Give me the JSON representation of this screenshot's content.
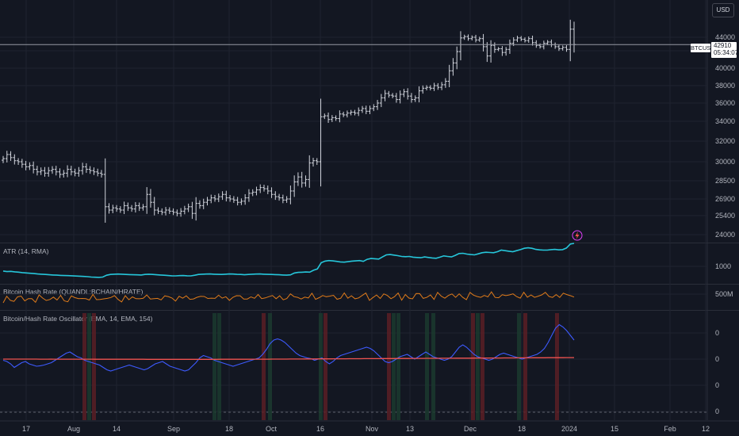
{
  "currency": "USD",
  "symbol_label": "BTCUSD",
  "last_price": "42910",
  "countdown": "05:34:07",
  "colors": {
    "background": "#131722",
    "grid": "#1f2330",
    "pane_border": "#2a2e39",
    "candles": "#d1d4dc",
    "atr": "#26c6da",
    "hashrate": "#e07b1a",
    "osc_fast": "#3d5afe",
    "osc_slow": "#f05350",
    "band_red": "#5a1f24",
    "band_green": "#1b3a2e"
  },
  "chart_data": [
    {
      "type": "candlestick",
      "title": "",
      "yticks": [
        "44000",
        "42000",
        "40000",
        "38000",
        "36000",
        "34000",
        "32000",
        "30000",
        "28500",
        "26900",
        "25400",
        "24000"
      ],
      "xticks": [
        "17",
        "Aug",
        "14",
        "Sep",
        "18",
        "Oct",
        "16",
        "Nov",
        "13",
        "Dec",
        "18",
        "2024",
        "15",
        "Feb",
        "12"
      ],
      "last_price": 42910,
      "close": [
        30300,
        30700,
        30400,
        30100,
        30000,
        29800,
        29600,
        29700,
        29400,
        29200,
        29300,
        29100,
        29300,
        29400,
        29200,
        29000,
        29100,
        29400,
        29200,
        29100,
        29300,
        29600,
        29400,
        29300,
        29200,
        29100,
        29000,
        26200,
        25900,
        26100,
        26000,
        25900,
        26300,
        26100,
        26000,
        26300,
        26100,
        26200,
        27300,
        26600,
        25900,
        25800,
        25700,
        25900,
        25800,
        25700,
        25600,
        25800,
        26000,
        26200,
        25600,
        26500,
        26300,
        26600,
        26800,
        27000,
        26900,
        27100,
        27300,
        27000,
        26900,
        26800,
        26600,
        26700,
        27000,
        27400,
        27500,
        27700,
        27900,
        27800,
        27600,
        27300,
        27100,
        27000,
        26800,
        26900,
        27600,
        28400,
        28800,
        28300,
        28600,
        29900,
        30100,
        30000,
        34500,
        34600,
        34200,
        34400,
        34300,
        34800,
        34700,
        34900,
        35000,
        34900,
        35200,
        35400,
        35100,
        35400,
        35600,
        36000,
        36600,
        37100,
        36900,
        36800,
        36400,
        37000,
        37300,
        36800,
        36400,
        36600,
        37400,
        37700,
        37800,
        37700,
        38000,
        37800,
        38100,
        38500,
        39700,
        40600,
        41900,
        43900,
        44100,
        43800,
        44000,
        43600,
        43800,
        42600,
        41400,
        42800,
        42200,
        42300,
        41800,
        42200,
        43100,
        43600,
        43900,
        43700,
        43500,
        43800,
        43200,
        42800,
        42600,
        43100,
        43300,
        42900,
        42600,
        42300,
        42500,
        42200,
        45200,
        42910
      ],
      "ylim": [
        23500,
        46500
      ]
    },
    {
      "type": "line",
      "title": "ATR (14, RMA)",
      "yticks": [
        "1000"
      ],
      "series": [
        {
          "name": "ATR",
          "values": [
            820,
            800,
            810,
            790,
            780,
            760,
            750,
            735,
            725,
            710,
            700,
            690,
            680,
            670,
            665,
            655,
            650,
            645,
            640,
            630,
            625,
            615,
            605,
            590,
            585,
            580,
            590,
            660,
            690,
            700,
            705,
            700,
            690,
            685,
            680,
            675,
            670,
            690,
            700,
            690,
            680,
            670,
            660,
            650,
            640,
            635,
            645,
            650,
            640,
            635,
            660,
            690,
            700,
            705,
            710,
            700,
            695,
            690,
            700,
            710,
            705,
            695,
            690,
            680,
            690,
            700,
            705,
            710,
            700,
            695,
            690,
            685,
            680,
            670,
            665,
            675,
            745,
            770,
            775,
            785,
            780,
            850,
            900,
            1140,
            1200,
            1220,
            1210,
            1190,
            1170,
            1160,
            1180,
            1200,
            1210,
            1220,
            1190,
            1270,
            1300,
            1290,
            1280,
            1360,
            1440,
            1450,
            1430,
            1410,
            1380,
            1370,
            1380,
            1350,
            1340,
            1330,
            1360,
            1340,
            1320,
            1310,
            1350,
            1400,
            1380,
            1360,
            1420,
            1490,
            1500,
            1470,
            1450,
            1440,
            1480,
            1520,
            1540,
            1530,
            1520,
            1560,
            1620,
            1600,
            1580,
            1560,
            1600,
            1640,
            1690,
            1710,
            1690,
            1650,
            1630,
            1620,
            1620,
            1640,
            1650,
            1630,
            1640,
            1700,
            1850,
            1880
          ]
        }
      ]
    },
    {
      "type": "line",
      "title": "Bitcoin Hash Rate (QUANDL:BCHAIN/HRATE)",
      "yticks": [
        "500M"
      ]
    },
    {
      "type": "line",
      "title": "Bitcoin/Hash Rate Oscillator (EMA, 14, EMA, 154)",
      "yticks": [
        "0",
        "0",
        "0",
        "0"
      ],
      "series": [
        {
          "name": "EMA 14",
          "values": [
            -0.05,
            -0.1,
            -0.2,
            -0.35,
            -0.25,
            -0.15,
            -0.1,
            -0.2,
            -0.25,
            -0.3,
            -0.28,
            -0.25,
            -0.2,
            -0.15,
            -0.05,
            0.05,
            0.15,
            0.25,
            0.3,
            0.2,
            0.1,
            0.05,
            -0.05,
            -0.1,
            -0.15,
            -0.2,
            -0.25,
            -0.35,
            -0.45,
            -0.5,
            -0.45,
            -0.4,
            -0.35,
            -0.3,
            -0.25,
            -0.3,
            -0.35,
            -0.4,
            -0.45,
            -0.4,
            -0.3,
            -0.2,
            -0.15,
            -0.1,
            -0.2,
            -0.3,
            -0.35,
            -0.4,
            -0.45,
            -0.5,
            -0.45,
            -0.3,
            -0.15,
            0.05,
            0.15,
            0.1,
            0.05,
            -0.05,
            -0.1,
            -0.15,
            -0.2,
            -0.25,
            -0.3,
            -0.25,
            -0.2,
            -0.15,
            -0.1,
            -0.05,
            0.0,
            0.05,
            0.2,
            0.4,
            0.65,
            0.8,
            0.85,
            0.8,
            0.7,
            0.55,
            0.4,
            0.25,
            0.15,
            0.1,
            0.05,
            0.02,
            -0.05,
            0.0,
            0.05,
            -0.1,
            -0.2,
            -0.1,
            0.05,
            0.15,
            0.2,
            0.25,
            0.3,
            0.35,
            0.4,
            0.45,
            0.5,
            0.45,
            0.35,
            0.2,
            0.05,
            -0.1,
            -0.15,
            -0.1,
            0.0,
            0.1,
            0.15,
            0.2,
            0.1,
            0.0,
            0.1,
            0.2,
            0.3,
            0.2,
            0.1,
            0.05,
            0.0,
            -0.05,
            0.0,
            0.1,
            0.3,
            0.5,
            0.6,
            0.5,
            0.35,
            0.2,
            0.1,
            0.05,
            0.0,
            -0.05,
            0.0,
            0.1,
            0.2,
            0.25,
            0.2,
            0.15,
            0.1,
            0.05,
            0.0,
            0.05,
            0.1,
            0.15,
            0.2,
            0.3,
            0.45,
            0.7,
            1.0,
            1.3,
            1.45,
            1.35,
            1.2,
            1.0,
            0.8
          ]
        },
        {
          "name": "EMA 154",
          "values": [
            0.02,
            0.02,
            0.01,
            0.0,
            0.0,
            0.0,
            0.0,
            -0.02,
            -0.02,
            -0.02,
            -0.03,
            -0.03,
            -0.03,
            -0.02,
            -0.03,
            -0.04,
            -0.04,
            -0.04,
            -0.05,
            -0.05,
            -0.05,
            -0.05,
            -0.06,
            -0.06,
            -0.06,
            -0.07,
            -0.07,
            -0.07,
            -0.08,
            -0.08,
            -0.08,
            -0.08,
            -0.09,
            -0.09,
            -0.09,
            -0.1,
            -0.1,
            -0.1,
            -0.1,
            -0.11,
            -0.11,
            -0.11,
            -0.11,
            -0.12,
            -0.12,
            -0.12,
            -0.12,
            -0.12,
            -0.13,
            -0.13,
            -0.13,
            -0.13,
            -0.13,
            -0.12,
            -0.12,
            -0.12,
            -0.11,
            -0.11,
            -0.11,
            -0.1,
            -0.1,
            -0.1,
            -0.09,
            -0.09,
            -0.08,
            -0.08,
            -0.07,
            -0.07,
            -0.06,
            -0.06,
            -0.05,
            -0.04,
            -0.03,
            -0.02,
            -0.01,
            0.0,
            0.01,
            0.02,
            0.03,
            0.04,
            0.05,
            0.06,
            0.07,
            0.08,
            0.09,
            0.1,
            0.11,
            0.12,
            0.13,
            0.14,
            0.15,
            0.16,
            0.17,
            0.18,
            0.19,
            0.2,
            0.21,
            0.22,
            0.23,
            0.24,
            0.25,
            0.26,
            0.27,
            0.28,
            0.29,
            0.3,
            0.31,
            0.32,
            0.33,
            0.34,
            0.35,
            0.36,
            0.37,
            0.38,
            0.39,
            0.4,
            0.41,
            0.42,
            0.43,
            0.44,
            0.45,
            0.46,
            0.47,
            0.48,
            0.49,
            0.5,
            0.51,
            0.52,
            0.53,
            0.54,
            0.55,
            0.56,
            0.57,
            0.58,
            0.59,
            0.6,
            0.61,
            0.62,
            0.63,
            0.64,
            0.65,
            0.66,
            0.67,
            0.68,
            0.69,
            0.7,
            0.71,
            0.72,
            0.73,
            0.74,
            0.75,
            0.76,
            0.77,
            0.78,
            0.79,
            0.8
          ]
        }
      ]
    }
  ]
}
